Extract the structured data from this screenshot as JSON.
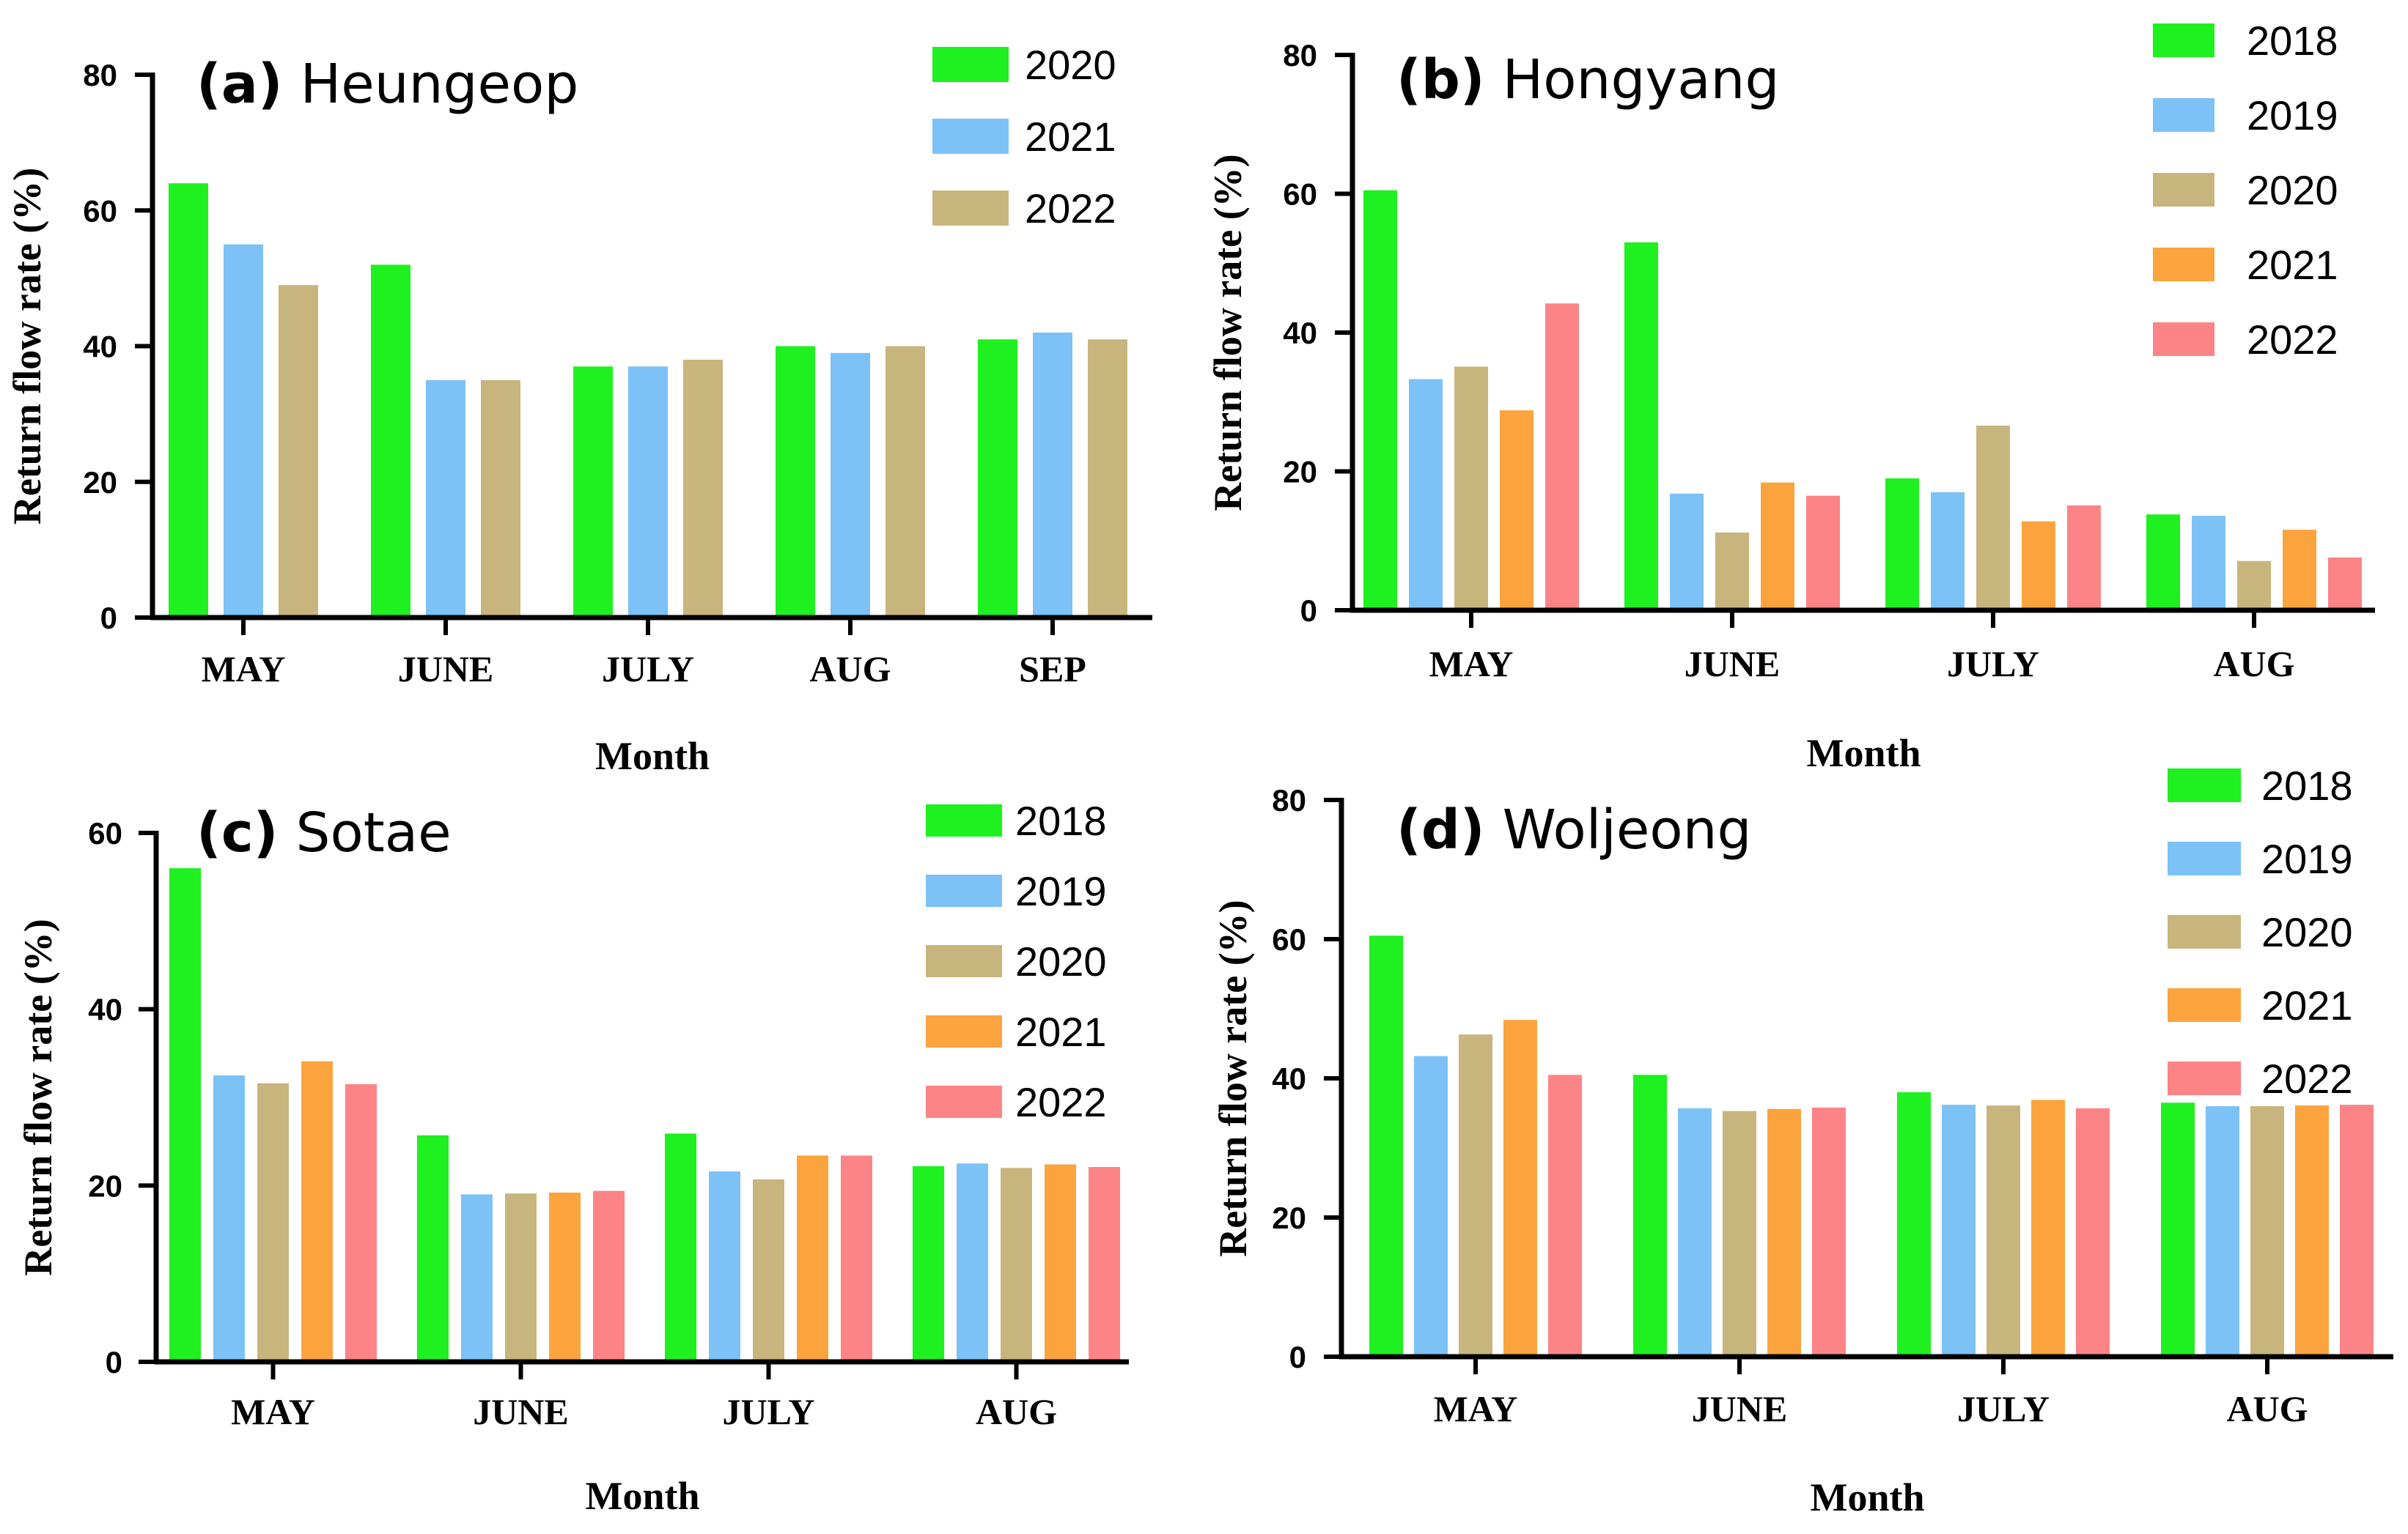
{
  "chart_data": [
    {
      "id": "a",
      "type": "bar",
      "letter": "(a)",
      "title": "Heungeop",
      "xlabel": "Month",
      "ylabel": "Return flow rate  (%)",
      "ylim": [
        0,
        80
      ],
      "yticks": [
        0,
        20,
        40,
        60,
        80
      ],
      "categories": [
        "MAY",
        "JUNE",
        "JULY",
        "AUG",
        "SEP"
      ],
      "series": [
        {
          "name": "2020",
          "color": "#1ff01f",
          "values": [
            64,
            52,
            37,
            40,
            41
          ]
        },
        {
          "name": "2021",
          "color": "#7cc2f7",
          "values": [
            55,
            35,
            37,
            39,
            42
          ]
        },
        {
          "name": "2022",
          "color": "#c8b57d",
          "values": [
            49,
            35,
            38,
            40,
            41
          ]
        }
      ]
    },
    {
      "id": "b",
      "type": "bar",
      "letter": "(b)",
      "title": "Hongyang",
      "xlabel": "Month",
      "ylabel": "Return flow rate  (%)",
      "ylim": [
        0,
        80
      ],
      "yticks": [
        0,
        20,
        40,
        60,
        80
      ],
      "categories": [
        "MAY",
        "JUNE",
        "JULY",
        "AUG"
      ],
      "series": [
        {
          "name": "2018",
          "color": "#1ff01f",
          "values": [
            60.5,
            53,
            19,
            13.8
          ]
        },
        {
          "name": "2019",
          "color": "#7cc2f7",
          "values": [
            33.3,
            16.8,
            17,
            13.6
          ]
        },
        {
          "name": "2020",
          "color": "#c8b57d",
          "values": [
            35.1,
            11.2,
            26.6,
            7.1
          ]
        },
        {
          "name": "2021",
          "color": "#fba43e",
          "values": [
            28.8,
            18.4,
            12.8,
            11.6
          ]
        },
        {
          "name": "2022",
          "color": "#fc8487",
          "values": [
            44.2,
            16.5,
            15.1,
            7.6
          ]
        }
      ]
    },
    {
      "id": "c",
      "type": "bar",
      "letter": "(c)",
      "title": "Sotae",
      "xlabel": "Month",
      "ylabel": "Return flow rate  (%)",
      "ylim": [
        0,
        60
      ],
      "yticks": [
        0,
        20,
        40,
        60
      ],
      "categories": [
        "MAY",
        "JUNE",
        "JULY",
        "AUG"
      ],
      "series": [
        {
          "name": "2018",
          "color": "#1ff01f",
          "values": [
            56,
            25.7,
            25.9,
            22.2
          ]
        },
        {
          "name": "2019",
          "color": "#7cc2f7",
          "values": [
            32.5,
            19,
            21.6,
            22.5
          ]
        },
        {
          "name": "2020",
          "color": "#c8b57d",
          "values": [
            31.6,
            19.1,
            20.7,
            22
          ]
        },
        {
          "name": "2021",
          "color": "#fba43e",
          "values": [
            34.1,
            19.2,
            23.4,
            22.4
          ]
        },
        {
          "name": "2022",
          "color": "#fc8487",
          "values": [
            31.5,
            19.4,
            23.4,
            22.1
          ]
        }
      ]
    },
    {
      "id": "d",
      "type": "bar",
      "letter": "(d)",
      "title": "Woljeong",
      "xlabel": "Month",
      "ylabel": "Return flow rate  (%)",
      "ylim": [
        0,
        80
      ],
      "yticks": [
        0,
        20,
        40,
        60,
        80
      ],
      "categories": [
        "MAY",
        "JUNE",
        "JULY",
        "AUG"
      ],
      "series": [
        {
          "name": "2018",
          "color": "#1ff01f",
          "values": [
            60.5,
            40.5,
            38,
            36.5
          ]
        },
        {
          "name": "2019",
          "color": "#7cc2f7",
          "values": [
            43.2,
            35.7,
            36.2,
            36
          ]
        },
        {
          "name": "2020",
          "color": "#c8b57d",
          "values": [
            46.3,
            35.3,
            36.1,
            36
          ]
        },
        {
          "name": "2021",
          "color": "#fba43e",
          "values": [
            48.4,
            35.6,
            36.9,
            36.1
          ]
        },
        {
          "name": "2022",
          "color": "#fc8487",
          "values": [
            40.5,
            35.8,
            35.7,
            36.2
          ]
        }
      ]
    }
  ]
}
